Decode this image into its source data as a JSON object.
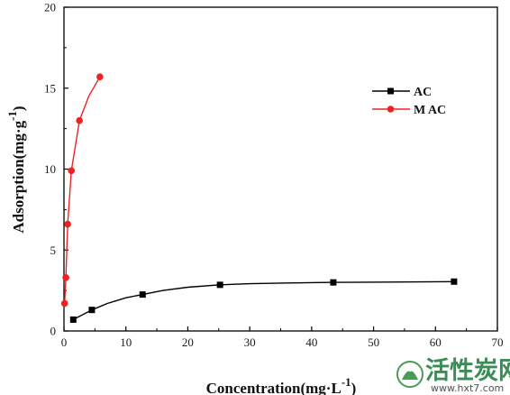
{
  "chart_data": {
    "type": "line",
    "xlabel": "Concentration(mg·L",
    "xlabel_sup": "-1",
    "xlabel_close": ")",
    "ylabel": "Adsorption(mg·g",
    "ylabel_sup": "-1",
    "ylabel_close": ")",
    "xlim": [
      0,
      70
    ],
    "ylim": [
      0,
      20
    ],
    "x_ticks": [
      0,
      10,
      20,
      30,
      40,
      50,
      60,
      70
    ],
    "y_ticks": [
      0,
      5,
      10,
      15,
      20
    ],
    "grid": false,
    "legend_position": "upper-right",
    "series": [
      {
        "name": "AC",
        "color": "#000000",
        "marker": "square",
        "x": [
          1.5,
          4.5,
          12.7,
          25.2,
          43.5,
          63.0
        ],
        "y": [
          0.7,
          1.3,
          2.25,
          2.85,
          3.0,
          3.05
        ],
        "curve_x": [
          1.5,
          2.5,
          4.5,
          7,
          10,
          12.7,
          16,
          20,
          25.2,
          30,
          35,
          43.5,
          52,
          63.0
        ],
        "curve_y": [
          0.7,
          0.9,
          1.3,
          1.7,
          2.05,
          2.25,
          2.5,
          2.7,
          2.85,
          2.92,
          2.96,
          3.0,
          3.02,
          3.05
        ]
      },
      {
        "name": "M AC",
        "color": "#ee2222",
        "marker": "circle",
        "x": [
          0.1,
          0.3,
          0.6,
          1.2,
          2.5,
          5.8
        ],
        "y": [
          1.7,
          3.3,
          6.6,
          9.9,
          13.0,
          15.7
        ],
        "curve_x": [
          0.1,
          0.3,
          0.6,
          1.2,
          2.5,
          4.0,
          5.8
        ],
        "curve_y": [
          1.7,
          3.3,
          6.6,
          9.9,
          13.0,
          14.5,
          15.7
        ]
      }
    ]
  },
  "watermark": {
    "title": "活性炭网",
    "url": "www.hxt7.com",
    "logo_color": "#2a8a3a"
  }
}
